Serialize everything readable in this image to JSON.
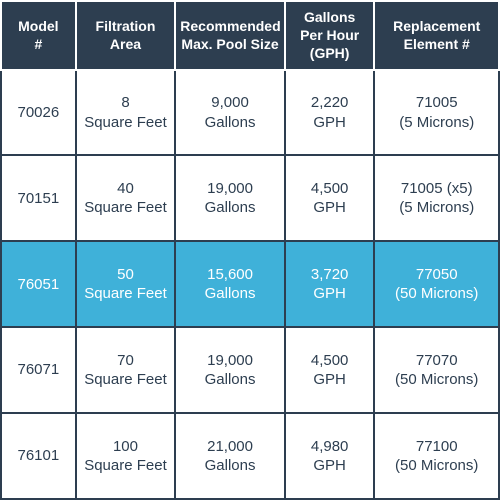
{
  "colors": {
    "header_bg": "#2d3e50",
    "header_text": "#ffffff",
    "border": "#2d3e50",
    "cell_bg": "#ffffff",
    "cell_text": "#2d3e50",
    "highlight_bg": "#3fb1d9",
    "highlight_text": "#ffffff"
  },
  "columns": [
    {
      "label_line1": "Model",
      "label_line2": "#"
    },
    {
      "label_line1": "Filtration",
      "label_line2": "Area"
    },
    {
      "label_line1": "Recommended",
      "label_line2": "Max. Pool Size"
    },
    {
      "label_line1": "Gallons",
      "label_line2": "Per Hour",
      "label_line3": "(GPH)"
    },
    {
      "label_line1": "Replacement",
      "label_line2": "Element #"
    }
  ],
  "rows": [
    {
      "highlighted": false,
      "model": "70026",
      "filtration_line1": "8",
      "filtration_line2": "Square Feet",
      "pool_line1": "9,000",
      "pool_line2": "Gallons",
      "gph_line1": "2,220",
      "gph_line2": "GPH",
      "replacement_line1": "71005",
      "replacement_line2": "(5 Microns)"
    },
    {
      "highlighted": false,
      "model": "70151",
      "filtration_line1": "40",
      "filtration_line2": "Square Feet",
      "pool_line1": "19,000",
      "pool_line2": "Gallons",
      "gph_line1": "4,500",
      "gph_line2": "GPH",
      "replacement_line1": "71005 (x5)",
      "replacement_line2": "(5 Microns)"
    },
    {
      "highlighted": true,
      "model": "76051",
      "filtration_line1": "50",
      "filtration_line2": "Square Feet",
      "pool_line1": "15,600",
      "pool_line2": "Gallons",
      "gph_line1": "3,720",
      "gph_line2": "GPH",
      "replacement_line1": "77050",
      "replacement_line2": "(50 Microns)"
    },
    {
      "highlighted": false,
      "model": "76071",
      "filtration_line1": "70",
      "filtration_line2": "Square Feet",
      "pool_line1": "19,000",
      "pool_line2": "Gallons",
      "gph_line1": "4,500",
      "gph_line2": "GPH",
      "replacement_line1": "77070",
      "replacement_line2": "(50 Microns)"
    },
    {
      "highlighted": false,
      "model": "76101",
      "filtration_line1": "100",
      "filtration_line2": "Square Feet",
      "pool_line1": "21,000",
      "pool_line2": "Gallons",
      "gph_line1": "4,980",
      "gph_line2": "GPH",
      "replacement_line1": "77100",
      "replacement_line2": "(50 Microns)"
    }
  ]
}
